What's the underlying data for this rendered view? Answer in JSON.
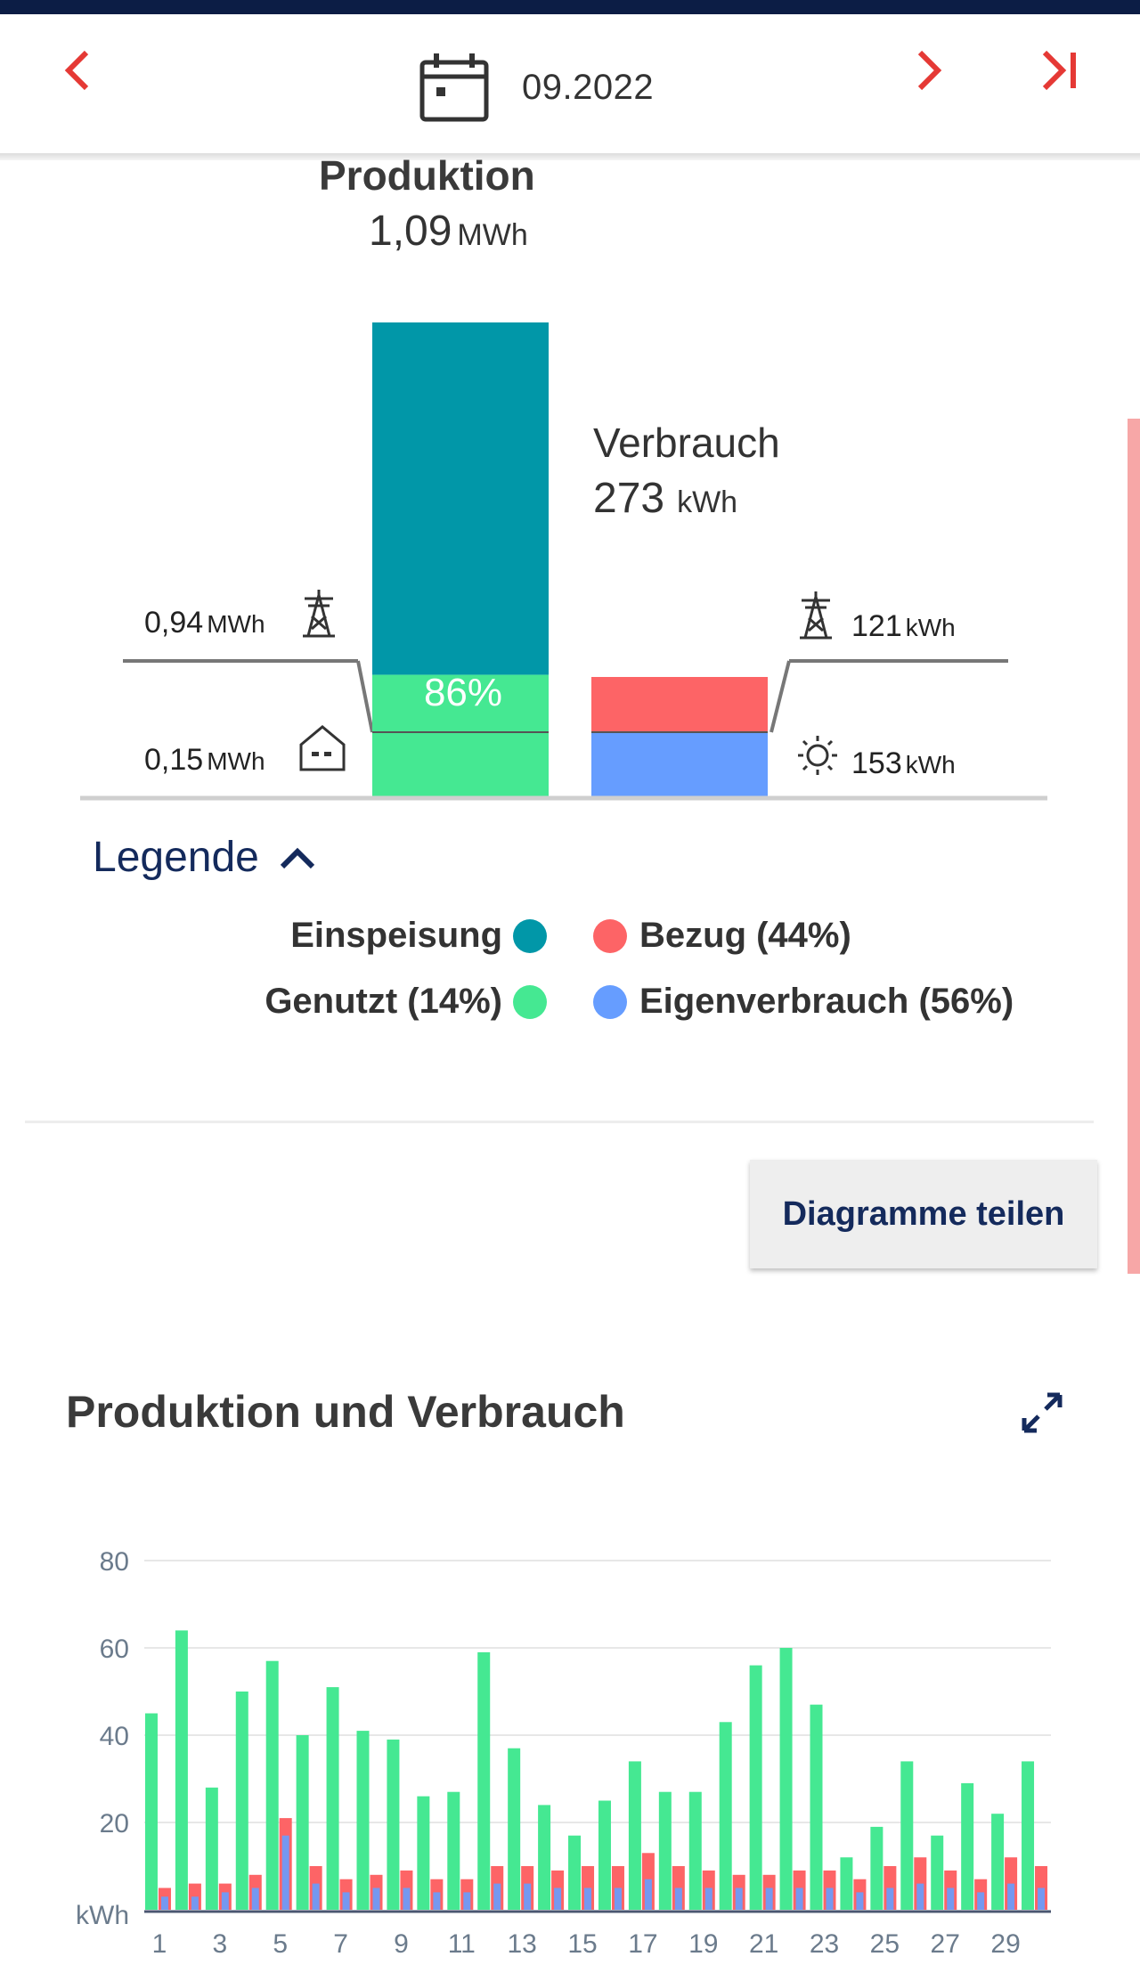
{
  "header": {
    "period": "09.2022",
    "icons": {
      "prev": "chevron-left-icon",
      "next": "chevron-right-icon",
      "last": "skip-to-end-icon",
      "calendar": "calendar-icon"
    },
    "accent_color": "#e53935"
  },
  "summary": {
    "production": {
      "label": "Produktion",
      "value": "1,09",
      "unit": "MWh"
    },
    "consumption": {
      "label": "Verbrauch",
      "value": "273",
      "unit": "kWh"
    },
    "feed_in": {
      "value": "0,94",
      "unit": "MWh",
      "icon": "power-pylon-icon"
    },
    "used": {
      "value": "0,15",
      "unit": "MWh",
      "icon": "house-icon"
    },
    "grid_purchase": {
      "value": "121",
      "unit": "kWh",
      "icon": "power-pylon-icon"
    },
    "self_consumption": {
      "value": "153",
      "unit": "kWh",
      "icon": "sun-icon"
    },
    "production_share_label": "86%",
    "production_split": {
      "feed_in_fraction": 0.86,
      "used_fraction": 0.14
    },
    "consumption_split": {
      "purchase_fraction": 0.44,
      "self_fraction": 0.56
    }
  },
  "legend": {
    "title": "Legende",
    "items": [
      {
        "label": "Einspeisung",
        "color": "#0197a8"
      },
      {
        "label": "Genutzt (14%)",
        "color": "#45e892"
      },
      {
        "label": "Bezug (44%)",
        "color": "#fd6466"
      },
      {
        "label": "Eigenverbrauch (56%)",
        "color": "#669dff"
      }
    ]
  },
  "share_button": "Diagramme teilen",
  "daily_chart": {
    "title": "Produktion und Verbrauch",
    "expand_icon": "expand-icon"
  },
  "chart_data": {
    "type": "bar",
    "ylabel": "kWh",
    "ylim": [
      0,
      80
    ],
    "yticks": [
      20,
      40,
      60,
      80
    ],
    "x_tick_labels": [
      "1",
      "3",
      "5",
      "7",
      "9",
      "11",
      "13",
      "15",
      "17",
      "19",
      "21",
      "23",
      "25",
      "27",
      "29"
    ],
    "categories": [
      1,
      2,
      3,
      4,
      5,
      6,
      7,
      8,
      9,
      10,
      11,
      12,
      13,
      14,
      15,
      16,
      17,
      18,
      19,
      20,
      21,
      22,
      23,
      24,
      25,
      26,
      27,
      28,
      29,
      30
    ],
    "series": [
      {
        "color": "#45e892",
        "values": [
          45,
          64,
          28,
          50,
          57,
          40,
          51,
          41,
          39,
          26,
          27,
          59,
          37,
          24,
          17,
          25,
          34,
          27,
          27,
          43,
          56,
          60,
          47,
          12,
          19,
          34,
          17,
          29,
          22,
          34
        ]
      },
      {
        "color": "#fd6466",
        "values": [
          5,
          6,
          6,
          8,
          21,
          10,
          7,
          8,
          9,
          7,
          7,
          10,
          10,
          9,
          10,
          10,
          13,
          10,
          9,
          8,
          8,
          9,
          9,
          7,
          10,
          12,
          9,
          7,
          12,
          10
        ]
      },
      {
        "color": "#669dff",
        "values": [
          3,
          3,
          4,
          5,
          17,
          6,
          4,
          5,
          5,
          4,
          4,
          6,
          6,
          5,
          5,
          5,
          7,
          5,
          5,
          5,
          5,
          5,
          5,
          4,
          5,
          6,
          5,
          4,
          6,
          5
        ]
      }
    ],
    "grid": true
  }
}
